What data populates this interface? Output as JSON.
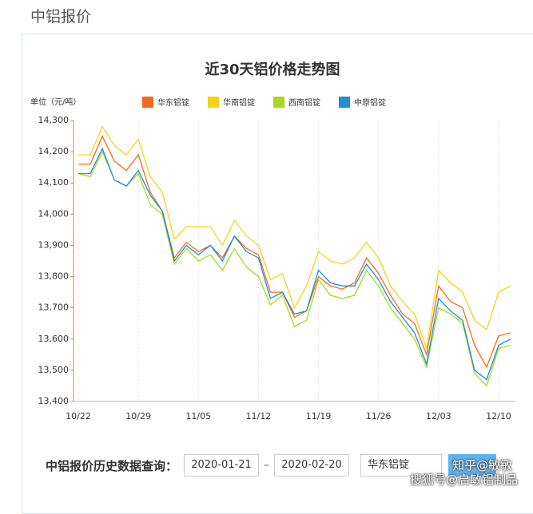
{
  "header": {
    "title": "中铝报价"
  },
  "chart_data": {
    "type": "line",
    "title": "近30天铝价格走势图",
    "unit_label": "单位（元/吨）",
    "categories": [
      "10/22",
      null,
      null,
      null,
      null,
      "10/29",
      null,
      null,
      null,
      null,
      "11/05",
      null,
      null,
      null,
      null,
      "11/12",
      null,
      null,
      null,
      null,
      "11/19",
      null,
      null,
      null,
      null,
      "11/26",
      null,
      null,
      null,
      null,
      "12/03",
      null,
      null,
      null,
      null,
      "12/10",
      null
    ],
    "series": [
      {
        "name": "华东铝锭",
        "color": "#f26b1d",
        "values": [
          14160,
          14160,
          14250,
          14170,
          14140,
          14190,
          14070,
          14010,
          13860,
          13910,
          13880,
          13900,
          13860,
          13930,
          13890,
          13870,
          13750,
          13750,
          13670,
          13690,
          13800,
          13770,
          13760,
          13780,
          13860,
          13810,
          13740,
          13680,
          13650,
          13550,
          13770,
          13720,
          13700,
          13580,
          13510,
          13610,
          13620
        ]
      },
      {
        "name": "华南铝锭",
        "color": "#f5d31a",
        "values": [
          14190,
          14190,
          14280,
          14220,
          14190,
          14240,
          14120,
          14070,
          13920,
          13960,
          13960,
          13960,
          13900,
          13980,
          13930,
          13900,
          13790,
          13810,
          13700,
          13770,
          13880,
          13850,
          13840,
          13860,
          13910,
          13860,
          13770,
          13720,
          13680,
          13570,
          13820,
          13780,
          13750,
          13660,
          13630,
          13750,
          13770
        ]
      },
      {
        "name": "西南铝锭",
        "color": "#a8d81e",
        "values": [
          14130,
          14120,
          14200,
          14110,
          14090,
          14130,
          14030,
          14000,
          13840,
          13890,
          13850,
          13870,
          13820,
          13890,
          13830,
          13800,
          13710,
          13740,
          13640,
          13660,
          13790,
          13740,
          13730,
          13740,
          13820,
          13770,
          13700,
          13650,
          13600,
          13510,
          13700,
          13680,
          13650,
          13490,
          13450,
          13570,
          13580
        ]
      },
      {
        "name": "中原铝锭",
        "color": "#1e90d0",
        "values": [
          14130,
          14130,
          14210,
          14110,
          14090,
          14140,
          14060,
          14010,
          13850,
          13900,
          13870,
          13900,
          13850,
          13930,
          13880,
          13860,
          13730,
          13750,
          13680,
          13690,
          13820,
          13780,
          13770,
          13770,
          13840,
          13790,
          13720,
          13670,
          13620,
          13520,
          13730,
          13690,
          13660,
          13500,
          13470,
          13580,
          13600
        ]
      }
    ],
    "ylim": [
      13400,
      14300
    ],
    "yticks": [
      {
        "value": 13400,
        "label": "13,400"
      },
      {
        "value": 13500,
        "label": "13,500"
      },
      {
        "value": 13600,
        "label": "13,600"
      },
      {
        "value": 13700,
        "label": "13,700"
      },
      {
        "value": 13800,
        "label": "13,800"
      },
      {
        "value": 13900,
        "label": "13,900"
      },
      {
        "value": 14000,
        "label": "14,000"
      },
      {
        "value": 14100,
        "label": "14,100"
      },
      {
        "value": 14200,
        "label": "14,200"
      },
      {
        "value": 14300,
        "label": "14,300"
      }
    ],
    "grid": true
  },
  "query": {
    "label": "中铝报价历史数据查询：",
    "start": "2020-01-21",
    "dash": "–",
    "end": "2020-02-20",
    "select": "华东铝锭"
  },
  "watermarks": [
    "知乎@敏敏",
    "搜狐号@启敏铝制品"
  ]
}
